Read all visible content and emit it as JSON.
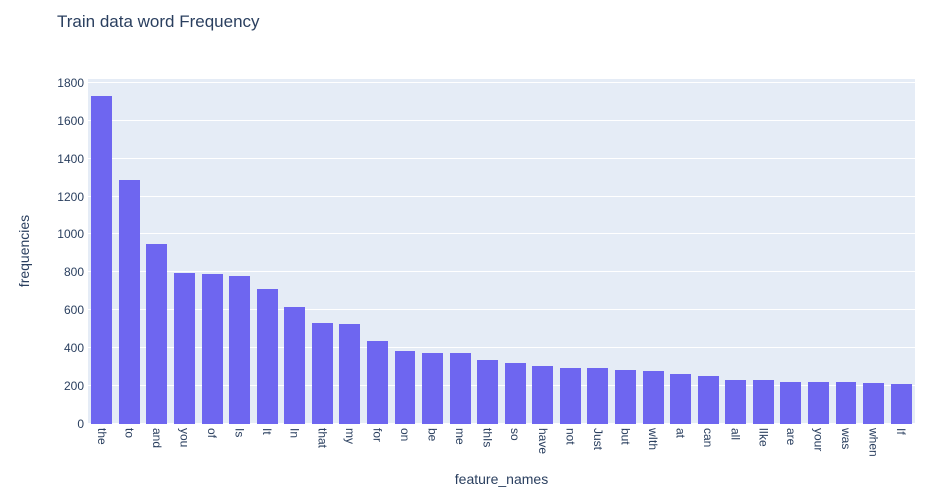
{
  "header": {
    "title": "Train data word Frequency"
  },
  "chart_data": {
    "type": "bar",
    "title": "Train data word Frequency",
    "xlabel": "feature_names",
    "ylabel": "frequencies",
    "categories": [
      "the",
      "to",
      "and",
      "you",
      "of",
      "Is",
      "It",
      "In",
      "that",
      "my",
      "for",
      "on",
      "be",
      "me",
      "thIs",
      "so",
      "have",
      "not",
      "Just",
      "but",
      "wIth",
      "at",
      "can",
      "all",
      "lIke",
      "are",
      "your",
      "was",
      "when",
      "If"
    ],
    "values": [
      1730,
      1285,
      950,
      795,
      790,
      780,
      710,
      617,
      531,
      528,
      437,
      383,
      377,
      373,
      340,
      323,
      308,
      297,
      294,
      284,
      281,
      264,
      251,
      234,
      233,
      223,
      222,
      220,
      219,
      211
    ],
    "ylim": [
      0,
      1820
    ],
    "yticks": [
      0,
      200,
      400,
      600,
      800,
      1000,
      1200,
      1400,
      1600,
      1800
    ],
    "grid": true,
    "legend": false,
    "colors": {
      "bar": "#6e66f0",
      "plot_background": "#e5ecf6",
      "gridline": "#ffffff",
      "text": "#2a3f5f",
      "paper_background": "#ffffff"
    }
  }
}
